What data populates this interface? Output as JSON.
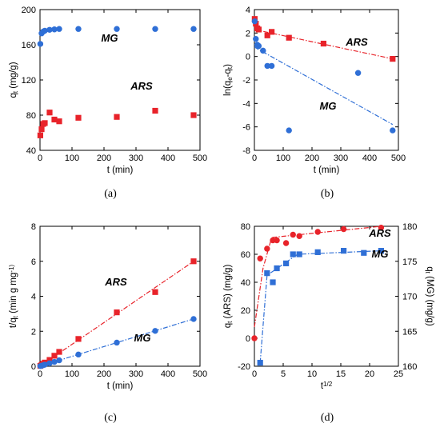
{
  "figure": {
    "panel_labels": [
      "(a)",
      "(b)",
      "(c)",
      "(d)"
    ]
  },
  "colors": {
    "red": "#e8232a",
    "blue": "#2f6fd6"
  },
  "chart_data": [
    {
      "type": "scatter",
      "panel": "(a)",
      "xlabel": "t (min)",
      "ylabel": "q_t (mg/g)",
      "xlim": [
        0,
        500
      ],
      "ylim": [
        40,
        200
      ],
      "xticks": [
        0,
        100,
        200,
        300,
        400,
        500
      ],
      "yticks": [
        40,
        80,
        120,
        160,
        200
      ],
      "annotations": [
        "MG",
        "ARS"
      ],
      "series": [
        {
          "name": "MG",
          "color": "#2f6fd6",
          "marker": "circle",
          "x": [
            1,
            5,
            10,
            15,
            30,
            45,
            60,
            120,
            240,
            360,
            480
          ],
          "y": [
            161,
            173,
            175,
            176,
            177,
            177.5,
            178,
            178,
            178,
            178,
            178
          ]
        },
        {
          "name": "ARS",
          "color": "#e8232a",
          "marker": "square",
          "x": [
            1,
            5,
            10,
            15,
            30,
            45,
            60,
            120,
            240,
            360,
            480
          ],
          "y": [
            57,
            64,
            70,
            71,
            83,
            75,
            73,
            77,
            78,
            85,
            80
          ]
        }
      ]
    },
    {
      "type": "scatter",
      "panel": "(b)",
      "xlabel": "t (min)",
      "ylabel": "ln(q_e-q_t)",
      "xlim": [
        0,
        500
      ],
      "ylim": [
        -8,
        4
      ],
      "xticks": [
        0,
        100,
        200,
        300,
        400,
        500
      ],
      "yticks": [
        -8,
        -6,
        -4,
        -2,
        0,
        2,
        4
      ],
      "annotations": [
        "ARS",
        "MG"
      ],
      "series": [
        {
          "name": "ARS",
          "color": "#e8232a",
          "marker": "square",
          "x": [
            1,
            5,
            10,
            15,
            45,
            60,
            120,
            240,
            480
          ],
          "y": [
            3.2,
            2.8,
            2.4,
            2.3,
            1.8,
            2.1,
            1.6,
            1.1,
            -0.2
          ],
          "fit": [
            [
              0,
              2.3
            ],
            [
              480,
              -0.2
            ]
          ]
        },
        {
          "name": "MG",
          "color": "#2f6fd6",
          "marker": "circle",
          "x": [
            1,
            5,
            10,
            15,
            30,
            45,
            60,
            120,
            360,
            480
          ],
          "y": [
            3.0,
            1.5,
            1.0,
            0.9,
            0.5,
            -0.8,
            -0.8,
            -6.3,
            -1.4,
            -6.3
          ],
          "fit": [
            [
              0,
              0.8
            ],
            [
              480,
              -5.8
            ]
          ]
        }
      ]
    },
    {
      "type": "scatter",
      "panel": "(c)",
      "xlabel": "t (min)",
      "ylabel": "t/q_t (min g mg^-1)",
      "xlim": [
        0,
        500
      ],
      "ylim": [
        0,
        8
      ],
      "xticks": [
        0,
        100,
        200,
        300,
        400,
        500
      ],
      "yticks": [
        0,
        2,
        4,
        6,
        8
      ],
      "annotations": [
        "ARS",
        "MG"
      ],
      "series": [
        {
          "name": "ARS",
          "color": "#e8232a",
          "marker": "square",
          "x": [
            1,
            5,
            10,
            15,
            30,
            45,
            60,
            120,
            240,
            360,
            480
          ],
          "y": [
            0.02,
            0.08,
            0.14,
            0.21,
            0.36,
            0.6,
            0.82,
            1.56,
            3.08,
            4.24,
            6.0
          ],
          "fit": [
            [
              0,
              0.0
            ],
            [
              480,
              6.0
            ]
          ]
        },
        {
          "name": "MG",
          "color": "#2f6fd6",
          "marker": "circle",
          "x": [
            1,
            5,
            10,
            15,
            30,
            45,
            60,
            120,
            240,
            360,
            480
          ],
          "y": [
            0.01,
            0.03,
            0.06,
            0.09,
            0.17,
            0.25,
            0.34,
            0.67,
            1.35,
            2.02,
            2.7
          ],
          "fit": [
            [
              0,
              0.0
            ],
            [
              480,
              2.7
            ]
          ]
        }
      ]
    },
    {
      "type": "scatter",
      "panel": "(d)",
      "xlabel": "t^1/2",
      "ylabel": "q_t (ARS) (mg/g)",
      "ylabel_right": "q_t (MG) (mg/g)",
      "xlim": [
        0,
        25
      ],
      "ylim": [
        -20,
        80
      ],
      "ylim_right": [
        160,
        180
      ],
      "xticks": [
        0,
        5,
        10,
        15,
        20,
        25
      ],
      "yticks": [
        -20,
        0,
        20,
        40,
        60,
        80
      ],
      "yticks_right": [
        160,
        165,
        170,
        175,
        180
      ],
      "annotations": [
        "ARS",
        "MG"
      ],
      "series": [
        {
          "name": "ARS",
          "color": "#e8232a",
          "marker": "circle",
          "axis": "left",
          "x": [
            0,
            1,
            2.2,
            3.2,
            3.9,
            5.5,
            6.7,
            7.8,
            11,
            15.5,
            22
          ],
          "y": [
            0,
            57,
            64,
            70,
            70,
            68,
            74,
            73,
            76,
            78,
            79
          ],
          "fit": [
            [
              0,
              8
            ],
            [
              1.5,
              50
            ],
            [
              3,
              72
            ],
            [
              22,
              80
            ]
          ]
        },
        {
          "name": "MG",
          "color": "#2f6fd6",
          "marker": "square",
          "axis": "right",
          "x": [
            1,
            2.2,
            3.2,
            3.9,
            5.5,
            6.7,
            7.8,
            11,
            15.5,
            19,
            22
          ],
          "y": [
            160.5,
            173.3,
            172,
            174,
            174.7,
            176,
            176,
            176.3,
            176.5,
            176.2,
            176.5
          ],
          "fit": [
            [
              1,
              160.5
            ],
            [
              2.2,
              173
            ],
            [
              7.5,
              176
            ],
            [
              22,
              176.5
            ]
          ]
        }
      ]
    }
  ]
}
